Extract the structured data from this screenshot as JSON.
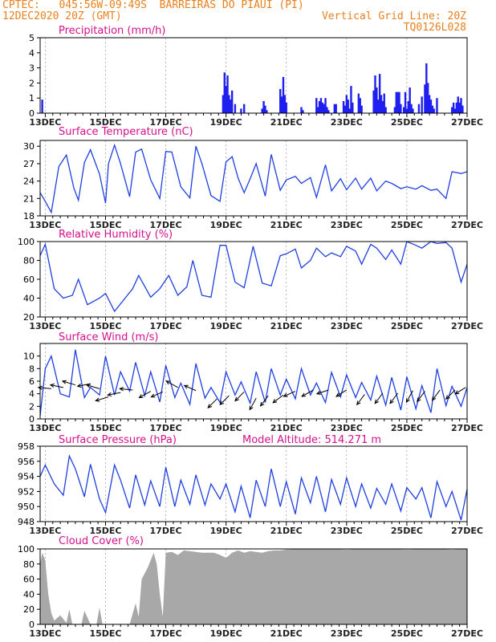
{
  "header": {
    "line1_left": "CPTEC:   045:56W-09:49S  BARREIRAS DO PIAUI (PI)",
    "line2_left": "12DEC2020 20Z (GMT)",
    "line2_right": "Vertical Grid Line: 20Z",
    "line3_right": "TQ0126L028"
  },
  "colors": {
    "header": "#e8801c",
    "title": "#d4108c",
    "line": "#1f3fe0",
    "bar": "#1f1ff0",
    "cloud": "#a8a8a8",
    "arrow": "#000000"
  },
  "x_ticks": [
    "13DEC",
    "15DEC",
    "17DEC",
    "19DEC",
    "21DEC",
    "23DEC",
    "25DEC",
    "27DEC"
  ],
  "chart_data": [
    {
      "id": "precip",
      "type": "bar",
      "title": "Precipitation (mm/h)",
      "ylim": [
        0,
        5
      ],
      "yticks": [
        "0",
        "1",
        "2",
        "3",
        "4",
        "5"
      ],
      "x_range_days": [
        12.83,
        27.0
      ],
      "x": [
        12.9,
        18.9,
        18.95,
        19.0,
        19.05,
        19.1,
        19.15,
        19.2,
        19.3,
        19.5,
        19.6,
        20.2,
        20.25,
        20.3,
        20.35,
        20.8,
        20.85,
        20.9,
        20.95,
        21.0,
        21.5,
        21.55,
        22.0,
        22.05,
        22.1,
        22.15,
        22.2,
        22.25,
        22.3,
        22.35,
        22.4,
        22.6,
        22.65,
        22.9,
        22.95,
        23.0,
        23.05,
        23.1,
        23.15,
        23.2,
        23.4,
        23.45,
        23.5,
        23.9,
        23.95,
        24.0,
        24.05,
        24.1,
        24.15,
        24.2,
        24.25,
        24.3,
        24.6,
        24.65,
        24.7,
        24.75,
        24.8,
        24.9,
        24.95,
        25.0,
        25.05,
        25.1,
        25.15,
        25.2,
        25.4,
        25.5,
        25.6,
        25.65,
        25.7,
        25.75,
        25.8,
        25.85,
        25.9,
        26.0,
        26.5,
        26.55,
        26.6,
        26.65,
        26.7,
        26.75,
        26.8,
        26.85
      ],
      "values": [
        0.9,
        1.2,
        2.7,
        1.8,
        2.5,
        1.2,
        0.9,
        1.5,
        0.6,
        0.3,
        0.6,
        0.3,
        0.8,
        0.5,
        0.2,
        1.6,
        1.1,
        2.4,
        1.2,
        0.7,
        0.4,
        0.2,
        1.0,
        0.4,
        0.8,
        1.0,
        0.7,
        0.6,
        1.0,
        0.4,
        0.2,
        0.6,
        0.6,
        0.8,
        0.5,
        1.2,
        0.9,
        0.3,
        1.8,
        0.7,
        1.3,
        1.0,
        0.5,
        1.5,
        2.5,
        1.7,
        0.9,
        2.6,
        1.2,
        0.8,
        1.3,
        0.4,
        0.4,
        1.4,
        1.4,
        1.4,
        0.6,
        0.4,
        1.4,
        0.3,
        0.8,
        1.7,
        0.6,
        0.3,
        0.6,
        1.1,
        1.9,
        3.3,
        2.0,
        1.2,
        0.9,
        0.5,
        0.3,
        1.0,
        0.4,
        0.7,
        0.3,
        0.7,
        1.1,
        0.7,
        1.0,
        0.5
      ]
    },
    {
      "id": "temp",
      "type": "line",
      "title": "Surface Temperature (nC)",
      "ylim": [
        18,
        31
      ],
      "yticks": [
        "18",
        "21",
        "24",
        "27",
        "30"
      ],
      "x_range_days": [
        12.83,
        27.0
      ],
      "x": [
        12.83,
        13.0,
        13.2,
        13.45,
        13.7,
        13.95,
        14.1,
        14.3,
        14.5,
        14.8,
        15.0,
        15.1,
        15.3,
        15.5,
        15.8,
        16.0,
        16.2,
        16.5,
        16.8,
        17.0,
        17.2,
        17.5,
        17.8,
        18.0,
        18.2,
        18.5,
        18.8,
        19.0,
        19.2,
        19.4,
        19.6,
        19.8,
        20.0,
        20.3,
        20.5,
        20.8,
        21.0,
        21.3,
        21.5,
        21.8,
        22.0,
        22.3,
        22.5,
        22.8,
        23.0,
        23.3,
        23.5,
        23.8,
        24.0,
        24.3,
        24.5,
        24.8,
        25.0,
        25.3,
        25.5,
        25.8,
        26.0,
        26.3,
        26.5,
        26.8,
        27.0
      ],
      "values": [
        22,
        20.5,
        18.6,
        26.5,
        28.5,
        22.8,
        20.7,
        27.2,
        29.4,
        25.2,
        20.2,
        27.0,
        30.2,
        27.0,
        21.3,
        29.0,
        29.5,
        24.2,
        21.0,
        29.1,
        29.0,
        23.0,
        21.1,
        30.0,
        27.0,
        21.5,
        20.5,
        27.3,
        28.2,
        24.5,
        22.0,
        24.4,
        27.0,
        21.4,
        28.6,
        22.4,
        24.2,
        24.8,
        23.6,
        24.6,
        21.2,
        26.8,
        22.3,
        24.4,
        22.5,
        24.5,
        22.6,
        24.5,
        22.3,
        24.0,
        23.6,
        22.7,
        23.0,
        22.6,
        23.2,
        22.4,
        22.6,
        21.0,
        25.6,
        25.3,
        25.6
      ]
    },
    {
      "id": "rh",
      "type": "line",
      "title": "Relative Humidity (%)",
      "ylim": [
        20,
        100
      ],
      "yticks": [
        "20",
        "40",
        "60",
        "80",
        "100"
      ],
      "x_range_days": [
        12.83,
        27.0
      ],
      "x": [
        12.83,
        13.0,
        13.3,
        13.6,
        13.9,
        14.1,
        14.4,
        14.8,
        15.0,
        15.3,
        15.6,
        15.9,
        16.1,
        16.5,
        16.8,
        17.1,
        17.4,
        17.7,
        17.9,
        18.2,
        18.5,
        18.8,
        19.0,
        19.3,
        19.6,
        19.9,
        20.2,
        20.5,
        20.8,
        21.0,
        21.3,
        21.5,
        21.8,
        22.0,
        22.3,
        22.5,
        22.8,
        23.0,
        23.3,
        23.5,
        23.8,
        24.0,
        24.3,
        24.5,
        24.8,
        25.0,
        25.3,
        25.5,
        25.8,
        26.0,
        26.3,
        26.5,
        26.8,
        27.0
      ],
      "values": [
        85,
        97,
        50,
        40,
        43,
        60,
        33,
        40,
        45,
        26,
        38,
        50,
        64,
        41,
        50,
        64,
        43,
        52,
        80,
        43,
        41,
        96,
        96,
        57,
        51,
        95,
        56,
        53,
        85,
        87,
        92,
        72,
        80,
        93,
        84,
        88,
        84,
        95,
        90,
        76,
        97,
        93,
        81,
        91,
        76,
        100,
        96,
        93,
        100,
        98,
        99,
        93,
        57,
        76
      ]
    },
    {
      "id": "wind",
      "type": "line",
      "title": "Surface Wind (m/s)",
      "ylim": [
        0,
        12
      ],
      "yticks": [
        "0",
        "2",
        "4",
        "6",
        "8",
        "10"
      ],
      "x_range_days": [
        12.83,
        27.0
      ],
      "x": [
        12.83,
        13.0,
        13.2,
        13.5,
        13.8,
        14.0,
        14.3,
        14.5,
        14.8,
        15.0,
        15.3,
        15.5,
        15.8,
        16.0,
        16.3,
        16.5,
        16.8,
        17.0,
        17.3,
        17.5,
        17.8,
        18.0,
        18.3,
        18.5,
        18.8,
        19.0,
        19.3,
        19.5,
        19.8,
        20.0,
        20.3,
        20.5,
        20.8,
        21.0,
        21.3,
        21.5,
        21.8,
        22.0,
        22.3,
        22.5,
        22.8,
        23.0,
        23.3,
        23.5,
        23.8,
        24.0,
        24.3,
        24.5,
        24.8,
        25.0,
        25.3,
        25.5,
        25.8,
        26.0,
        26.3,
        26.5,
        26.8,
        27.0
      ],
      "values": [
        0.5,
        8.0,
        10.0,
        4.0,
        3.5,
        11.0,
        3.4,
        5.0,
        3.8,
        10.0,
        3.8,
        7.5,
        4.4,
        9.0,
        3.7,
        7.5,
        2.7,
        8.5,
        3.4,
        5.7,
        2.3,
        8.8,
        3.3,
        5.0,
        2.6,
        7.5,
        3.8,
        5.9,
        2.5,
        7.5,
        2.6,
        8.0,
        3.8,
        6.3,
        3.2,
        8.0,
        3.8,
        5.7,
        2.6,
        7.4,
        3.5,
        7.0,
        3.4,
        5.8,
        3.0,
        6.8,
        2.2,
        6.6,
        1.4,
        6.7,
        1.6,
        5.3,
        1.0,
        8.0,
        2.1,
        5.2,
        2.0,
        5.0
      ],
      "arrows": [
        {
          "x": 13.2,
          "y": 4.8,
          "u": -1,
          "v": 0.1
        },
        {
          "x": 13.6,
          "y": 5.0,
          "u": -1,
          "v": 0.2
        },
        {
          "x": 14.0,
          "y": 5.4,
          "u": -1,
          "v": 0.3
        },
        {
          "x": 14.5,
          "y": 5.6,
          "u": -1,
          "v": -0.2
        },
        {
          "x": 14.8,
          "y": 4.8,
          "u": -1,
          "v": 0.3
        },
        {
          "x": 15.1,
          "y": 3.5,
          "u": -1,
          "v": -0.3
        },
        {
          "x": 15.5,
          "y": 4.2,
          "u": -1,
          "v": -0.2
        },
        {
          "x": 15.9,
          "y": 4.6,
          "u": -1,
          "v": 0.1
        },
        {
          "x": 16.5,
          "y": 4.4,
          "u": -0.9,
          "v": -0.5
        },
        {
          "x": 16.9,
          "y": 4.3,
          "u": -0.9,
          "v": -0.4
        },
        {
          "x": 17.4,
          "y": 5.0,
          "u": -0.9,
          "v": 0.5
        },
        {
          "x": 18.0,
          "y": 4.5,
          "u": -0.9,
          "v": 0.4
        },
        {
          "x": 18.7,
          "y": 3.2,
          "u": -0.7,
          "v": -0.7
        },
        {
          "x": 19.1,
          "y": 3.7,
          "u": -0.7,
          "v": -0.7
        },
        {
          "x": 19.6,
          "y": 4.3,
          "u": -0.7,
          "v": -0.7
        },
        {
          "x": 20.0,
          "y": 3.3,
          "u": -0.5,
          "v": -0.9
        },
        {
          "x": 20.4,
          "y": 3.7,
          "u": -0.6,
          "v": -0.8
        },
        {
          "x": 20.9,
          "y": 3.8,
          "u": -0.8,
          "v": -0.6
        },
        {
          "x": 21.3,
          "y": 4.4,
          "u": -0.9,
          "v": -0.4
        },
        {
          "x": 21.9,
          "y": 4.6,
          "u": -0.9,
          "v": -0.5
        },
        {
          "x": 22.4,
          "y": 4.6,
          "u": -0.9,
          "v": -0.3
        },
        {
          "x": 23.0,
          "y": 4.6,
          "u": -0.8,
          "v": -0.5
        },
        {
          "x": 23.6,
          "y": 3.9,
          "u": -0.6,
          "v": -0.8
        },
        {
          "x": 24.2,
          "y": 4.1,
          "u": -0.6,
          "v": -0.8
        },
        {
          "x": 24.7,
          "y": 4.1,
          "u": -0.6,
          "v": -0.8
        },
        {
          "x": 25.2,
          "y": 4.5,
          "u": -0.5,
          "v": -0.9
        },
        {
          "x": 25.6,
          "y": 4.4,
          "u": -0.6,
          "v": -0.8
        },
        {
          "x": 26.1,
          "y": 4.6,
          "u": -0.6,
          "v": -0.8
        },
        {
          "x": 26.6,
          "y": 4.6,
          "u": -0.7,
          "v": -0.7
        },
        {
          "x": 26.95,
          "y": 5.0,
          "u": -0.8,
          "v": -0.5
        }
      ]
    },
    {
      "id": "pressure",
      "type": "line",
      "title": "Surface Pressure (hPa)",
      "annotation": "Model Altitude: 514.271 m",
      "ylim": [
        948,
        958
      ],
      "yticks": [
        "948",
        "950",
        "952",
        "954",
        "956",
        "958"
      ],
      "x_range_days": [
        12.83,
        27.0
      ],
      "x": [
        12.83,
        13.0,
        13.3,
        13.6,
        13.8,
        14.0,
        14.3,
        14.5,
        14.8,
        15.0,
        15.3,
        15.5,
        15.8,
        16.0,
        16.3,
        16.5,
        16.8,
        17.0,
        17.3,
        17.5,
        17.8,
        18.0,
        18.3,
        18.5,
        18.8,
        19.0,
        19.3,
        19.5,
        19.8,
        20.0,
        20.3,
        20.5,
        20.8,
        21.0,
        21.3,
        21.5,
        21.8,
        22.0,
        22.3,
        22.5,
        22.8,
        23.0,
        23.3,
        23.5,
        23.8,
        24.0,
        24.3,
        24.5,
        24.8,
        25.0,
        25.3,
        25.5,
        25.8,
        26.0,
        26.3,
        26.5,
        26.8,
        27.0
      ],
      "values": [
        954.0,
        955.5,
        953.0,
        951.5,
        956.7,
        955.0,
        951.3,
        955.6,
        951.0,
        949.2,
        955.5,
        953.5,
        949.8,
        954.2,
        950.2,
        953.4,
        950.0,
        955.2,
        950.0,
        953.5,
        950.3,
        954.2,
        950.2,
        953.0,
        951.0,
        953.0,
        949.3,
        952.7,
        948.5,
        953.5,
        950.0,
        955.0,
        950.0,
        953.3,
        949.0,
        953.8,
        950.5,
        954.0,
        949.3,
        953.6,
        950.3,
        953.8,
        950.0,
        953.0,
        949.8,
        952.4,
        950.3,
        953.0,
        949.4,
        952.5,
        951.0,
        952.5,
        948.5,
        953.3,
        950.0,
        952.0,
        948.2,
        952.3
      ]
    },
    {
      "id": "cloud",
      "type": "area",
      "title": "Cloud Cover (%)",
      "ylim": [
        0,
        100
      ],
      "yticks": [
        "0",
        "20",
        "40",
        "60",
        "80",
        "100"
      ],
      "x_range_days": [
        12.83,
        27.0
      ],
      "x": [
        12.83,
        12.9,
        13.0,
        13.1,
        13.2,
        13.3,
        13.5,
        13.7,
        13.8,
        13.9,
        14.0,
        14.2,
        14.3,
        14.5,
        14.6,
        14.7,
        14.8,
        14.9,
        15.0,
        15.2,
        15.3,
        15.5,
        15.7,
        15.8,
        16.0,
        16.1,
        16.2,
        16.4,
        16.5,
        16.6,
        16.7,
        16.8,
        16.9,
        17.0,
        17.2,
        17.4,
        17.6,
        17.8,
        18.0,
        18.2,
        18.4,
        18.6,
        18.8,
        19.0,
        19.2,
        19.4,
        19.6,
        19.8,
        20.0,
        20.2,
        20.4,
        20.6,
        20.8,
        21.0,
        21.5,
        22.0,
        22.5,
        23.0,
        23.5,
        24.0,
        24.5,
        25.0,
        25.5,
        26.0,
        26.5,
        27.0
      ],
      "values": [
        80,
        95,
        85,
        40,
        15,
        5,
        12,
        2,
        20,
        0,
        0,
        0,
        18,
        0,
        0,
        0,
        22,
        0,
        0,
        0,
        0,
        0,
        0,
        0,
        28,
        10,
        60,
        75,
        85,
        95,
        80,
        40,
        10,
        95,
        96,
        92,
        98,
        97,
        96,
        95,
        95,
        95,
        92,
        88,
        95,
        98,
        95,
        97,
        96,
        95,
        97,
        98,
        98,
        99,
        100,
        100,
        100,
        99,
        100,
        100,
        100,
        99,
        100,
        100,
        99,
        100
      ]
    }
  ]
}
